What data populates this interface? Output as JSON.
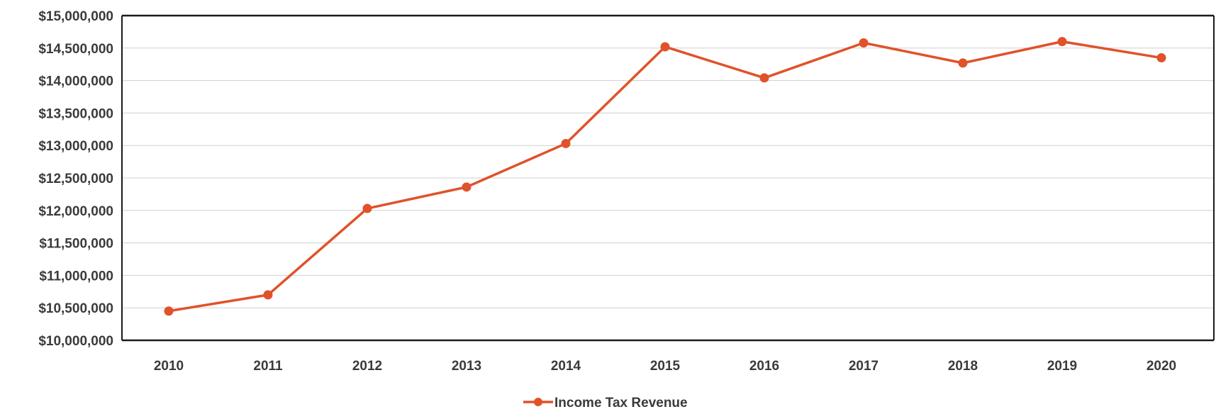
{
  "chart_data": {
    "type": "line",
    "title": "",
    "xlabel": "",
    "ylabel": "",
    "categories": [
      "2010",
      "2011",
      "2012",
      "2013",
      "2014",
      "2015",
      "2016",
      "2017",
      "2018",
      "2019",
      "2020"
    ],
    "series": [
      {
        "name": "Income Tax Revenue",
        "color": "#e0522a",
        "values": [
          10450000,
          10700000,
          12030000,
          12360000,
          13030000,
          14520000,
          14040000,
          14580000,
          14270000,
          14600000,
          14350000
        ]
      }
    ],
    "ylim": [
      10000000,
      15000000
    ],
    "yticks": [
      10000000,
      10500000,
      11000000,
      11500000,
      12000000,
      12500000,
      13000000,
      13500000,
      14000000,
      14500000,
      15000000
    ],
    "ytick_labels": [
      "$10,000,000",
      "$10,500,000",
      "$11,000,000",
      "$11,500,000",
      "$12,000,000",
      "$12,500,000",
      "$13,000,000",
      "$13,500,000",
      "$14,000,000",
      "$14,500,000",
      "$15,000,000"
    ],
    "grid": true,
    "legend_position": "bottom-center"
  }
}
